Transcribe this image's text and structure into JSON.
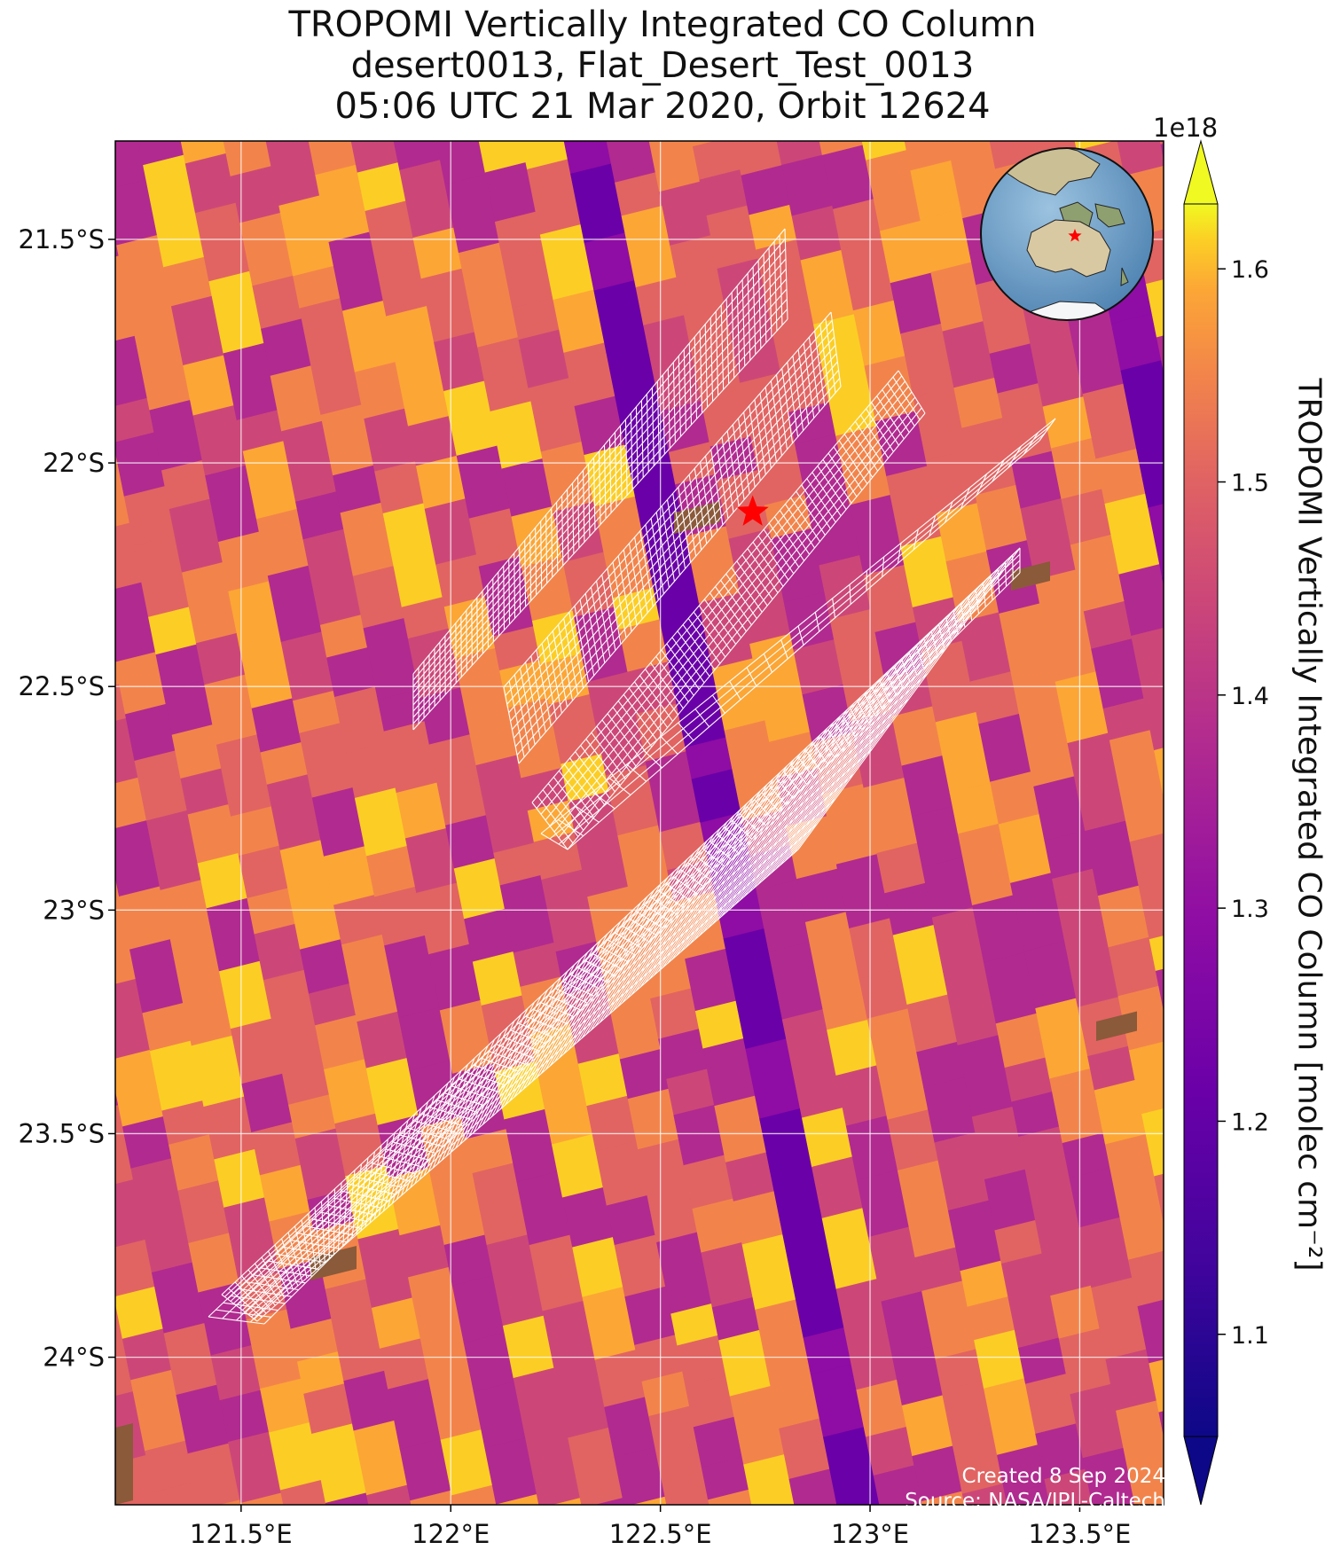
{
  "title": {
    "line1": "TROPOMI Vertically Integrated CO Column",
    "line2": "desert0013, Flat_Desert_Test_0013",
    "line3": "05:06 UTC 21 Mar 2020, Orbit 12624"
  },
  "map": {
    "lon_range": [
      121.2,
      123.7
    ],
    "lat_range": [
      -24.33,
      -21.28
    ],
    "x_ticks": [
      {
        "value": 121.5,
        "label": "121.5°E"
      },
      {
        "value": 122.0,
        "label": "122°E"
      },
      {
        "value": 122.5,
        "label": "122.5°E"
      },
      {
        "value": 123.0,
        "label": "123°E"
      },
      {
        "value": 123.5,
        "label": "123.5°E"
      }
    ],
    "y_ticks": [
      {
        "value": -21.5,
        "label": "21.5°S"
      },
      {
        "value": -22.0,
        "label": "22°S"
      },
      {
        "value": -22.5,
        "label": "22.5°S"
      },
      {
        "value": -23.0,
        "label": "23°S"
      },
      {
        "value": -23.5,
        "label": "23.5°S"
      },
      {
        "value": -24.0,
        "label": "24°S"
      }
    ],
    "grid": true,
    "target_marker": {
      "lon": 122.72,
      "lat": -22.11,
      "symbol": "star",
      "color": "#ff0000"
    },
    "inset": "globe-icon",
    "inset_marker_color": "#ff0000"
  },
  "colorbar": {
    "label": "TROPOMI Vertically Integrated CO Column [molec cm⁻²]",
    "exponent": "1e18",
    "range": [
      1.02,
      1.66
    ],
    "ticks": [
      "1.1",
      "1.2",
      "1.3",
      "1.4",
      "1.5",
      "1.6"
    ],
    "colormap": "plasma",
    "extend": "both"
  },
  "credits": {
    "created": "Created 8 Sep 2024",
    "source": "Source: NASA/JPL-Caltech"
  }
}
